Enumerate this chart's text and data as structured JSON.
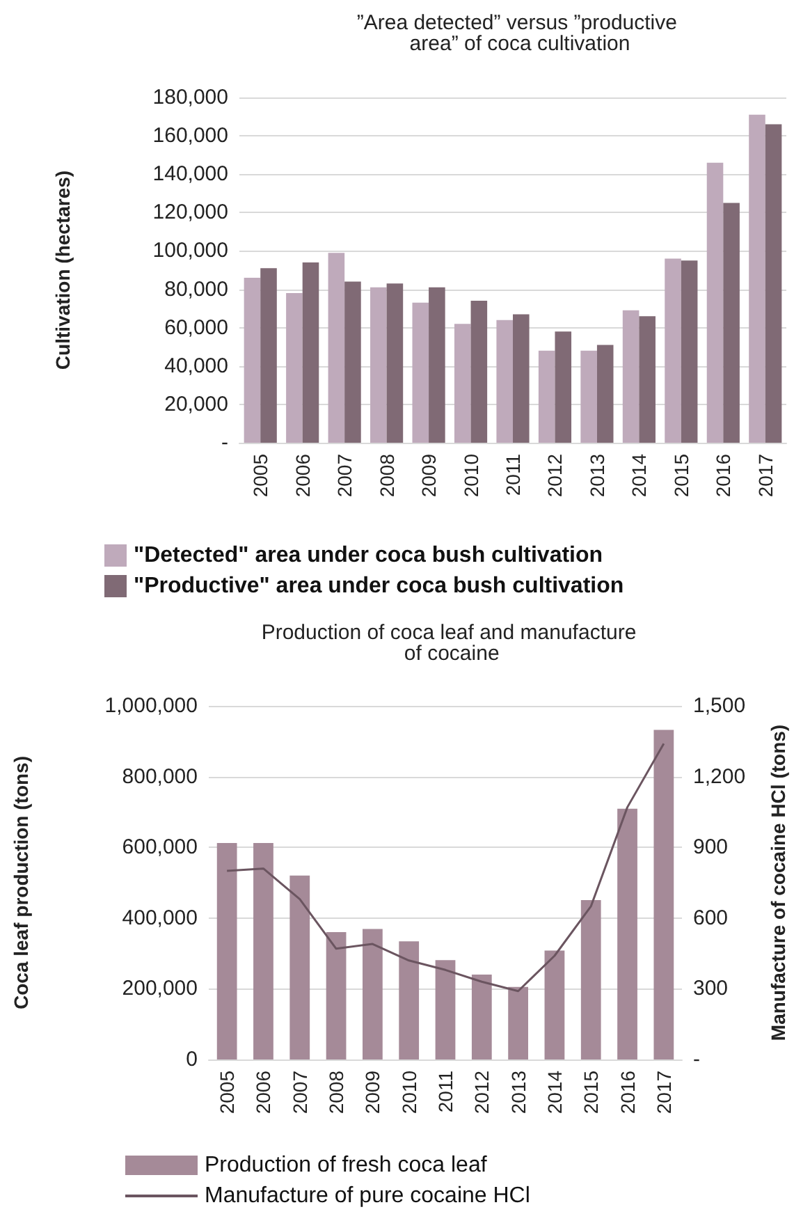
{
  "chart_data": [
    {
      "type": "bar",
      "title": "”Area detected” versus ”productive area” of coca cultivation",
      "ylabel": "Cultivation (hectares)",
      "categories": [
        "2005",
        "2006",
        "2007",
        "2008",
        "2009",
        "2010",
        "2011",
        "2012",
        "2013",
        "2014",
        "2015",
        "2016",
        "2017"
      ],
      "series": [
        {
          "name": "\"Detected\" area under coca bush cultivation",
          "color": "#bfaabb",
          "values": [
            86000,
            78000,
            99000,
            81000,
            73000,
            62000,
            64000,
            48000,
            48000,
            69000,
            96000,
            146000,
            171000
          ]
        },
        {
          "name": "\"Productive\" area under coca bush cultivation",
          "color": "#806a75",
          "values": [
            91000,
            94000,
            84000,
            83000,
            81000,
            74000,
            67000,
            58000,
            51000,
            66000,
            95000,
            125000,
            166000
          ]
        }
      ],
      "ylim": [
        0,
        180000
      ],
      "yticks": [
        {
          "value": 0,
          "label": "-"
        },
        {
          "value": 20000,
          "label": "20,000"
        },
        {
          "value": 40000,
          "label": "40,000"
        },
        {
          "value": 60000,
          "label": "60,000"
        },
        {
          "value": 80000,
          "label": "80,000"
        },
        {
          "value": 100000,
          "label": "100,000"
        },
        {
          "value": 120000,
          "label": "120,000"
        },
        {
          "value": 140000,
          "label": "140,000"
        },
        {
          "value": 160000,
          "label": "160,000"
        },
        {
          "value": 180000,
          "label": "180,000"
        }
      ],
      "grid": "y",
      "legend": "bottom"
    },
    {
      "type": "bar",
      "title": "Production of coca leaf and manufacture of cocaine",
      "ylabel": "Coca leaf production (tons)",
      "y2label": "Manufacture of cocaine HCl (tons)",
      "categories": [
        "2005",
        "2006",
        "2007",
        "2008",
        "2009",
        "2010",
        "2011",
        "2012",
        "2013",
        "2014",
        "2015",
        "2016",
        "2017"
      ],
      "series": [
        {
          "name": "Production of fresh coca leaf",
          "type": "bar",
          "color": "#a58a98",
          "values": [
            612000,
            612000,
            520000,
            360000,
            369000,
            334000,
            281000,
            240000,
            205000,
            308000,
            451000,
            709000,
            932000
          ]
        },
        {
          "name": "Manufacture of pure cocaine HCl",
          "type": "line",
          "axis": "y2",
          "color": "#6b5560",
          "values": [
            800,
            810,
            680,
            470,
            490,
            420,
            380,
            330,
            290,
            440,
            650,
            1070,
            1340
          ]
        }
      ],
      "ylim": [
        0,
        1000000
      ],
      "yticks": [
        0,
        {
          "value": 200000,
          "label": "200,000"
        },
        {
          "value": 400000,
          "label": "400,000"
        },
        {
          "value": 600000,
          "label": "600,000"
        },
        {
          "value": 800000,
          "label": "800,000"
        },
        {
          "value": 1000000,
          "label": "1,000,000"
        }
      ],
      "y2lim": [
        0,
        1500
      ],
      "y2ticks": [
        {
          "value": 0,
          "label": "-"
        },
        {
          "value": 300,
          "label": "300"
        },
        {
          "value": 600,
          "label": "600"
        },
        {
          "value": 900,
          "label": "900"
        },
        {
          "value": 1200,
          "label": "1,200"
        },
        {
          "value": 1500,
          "label": "1,500"
        }
      ],
      "grid": "y",
      "legend": "bottom",
      "marker": "none"
    }
  ]
}
